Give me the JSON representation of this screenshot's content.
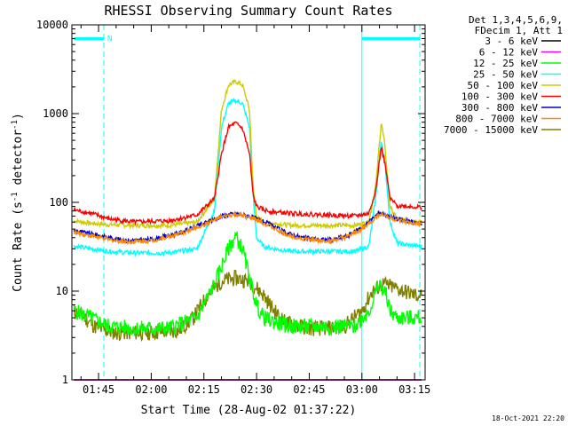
{
  "chart_data": {
    "type": "line",
    "title": "RHESSI Observing Summary Count Rates",
    "xlabel": "Start Time (28-Aug-02 01:37:22)",
    "ylabel_main": "Count Rate (s",
    "ylabel_exp1": "-1",
    "ylabel_mid": " detector",
    "ylabel_exp2": "-1",
    "ylabel_end": ")",
    "x_unit": "minutes after 00:00 UT",
    "xlim": [
      97.4,
      198
    ],
    "ylim": [
      1,
      10000
    ],
    "yscale": "log",
    "xticks": [
      {
        "label": "01:45",
        "value": 105
      },
      {
        "label": "02:00",
        "value": 120
      },
      {
        "label": "02:15",
        "value": 135
      },
      {
        "label": "02:30",
        "value": 150
      },
      {
        "label": "02:45",
        "value": 165
      },
      {
        "label": "03:00",
        "value": 180
      },
      {
        "label": "03:15",
        "value": 195
      }
    ],
    "yticks": [
      {
        "label": "1",
        "value": 1
      },
      {
        "label": "10",
        "value": 10
      },
      {
        "label": "100",
        "value": 100
      },
      {
        "label": "1000",
        "value": 1000
      },
      {
        "label": "10000",
        "value": 10000
      }
    ],
    "legend_header": [
      "Det 1,3,4,5,6,9,",
      "FDecim 1, Att 1"
    ],
    "legend_position": "right",
    "series": [
      {
        "name": "3 - 6 keV",
        "color": "#000000",
        "x": [
          98,
          111,
          127,
          135,
          140,
          150,
          160,
          175,
          180,
          186,
          194,
          197
        ],
        "y": [
          1,
          1,
          1,
          1,
          1,
          1,
          1,
          1,
          1,
          1,
          1,
          1
        ]
      },
      {
        "name": "6 - 12 keV",
        "color": "#ff00ff",
        "x": [
          98,
          111,
          127,
          135,
          140,
          150,
          160,
          175,
          180,
          186,
          194,
          197
        ],
        "y": [
          1,
          1,
          1,
          1,
          1,
          1,
          1,
          1,
          1,
          1,
          1,
          1
        ]
      },
      {
        "name": "12 - 25 keV",
        "color": "#00ff00",
        "x": [
          98,
          103,
          108,
          115,
          125,
          133,
          138,
          142,
          144,
          146,
          148,
          150,
          152,
          155,
          160,
          170,
          178,
          182,
          185,
          187,
          188,
          190,
          193,
          197
        ],
        "y": [
          6,
          5,
          4,
          3.8,
          3.8,
          5,
          12,
          30,
          42,
          30,
          14,
          7,
          5,
          4.5,
          4,
          4,
          4,
          6,
          12,
          9,
          6,
          5,
          5,
          5
        ]
      },
      {
        "name": "25 - 50 keV",
        "color": "#00ffff",
        "x": [
          98,
          103,
          108,
          115,
          125,
          133,
          138,
          140,
          142,
          144,
          146,
          148,
          149,
          150,
          152,
          155,
          160,
          170,
          178,
          182,
          184,
          185.5,
          186.5,
          188,
          190,
          193,
          197
        ],
        "y": [
          32,
          30,
          28,
          27,
          27,
          30,
          80,
          700,
          1300,
          1400,
          1300,
          700,
          120,
          40,
          32,
          30,
          28,
          28,
          28,
          32,
          120,
          500,
          300,
          60,
          35,
          33,
          32
        ]
      },
      {
        "name": "50 - 100 keV",
        "color": "#cccc00",
        "x": [
          98,
          103,
          108,
          115,
          125,
          133,
          138,
          140,
          142,
          144,
          146,
          148,
          149,
          150,
          152,
          155,
          160,
          170,
          178,
          182,
          184,
          185.5,
          186.5,
          188,
          190,
          193,
          197
        ],
        "y": [
          62,
          58,
          56,
          55,
          55,
          60,
          110,
          1100,
          2100,
          2300,
          2100,
          1100,
          150,
          68,
          60,
          58,
          55,
          55,
          55,
          60,
          160,
          800,
          450,
          90,
          65,
          63,
          62
        ]
      },
      {
        "name": "100 - 300 keV",
        "color": "#ff0000",
        "x": [
          98,
          103,
          108,
          115,
          125,
          133,
          138,
          140,
          142,
          144,
          146,
          148,
          149,
          150,
          152,
          155,
          160,
          170,
          178,
          182,
          184,
          185.5,
          186.5,
          188,
          190,
          193,
          197
        ],
        "y": [
          82,
          75,
          65,
          60,
          62,
          72,
          110,
          350,
          700,
          780,
          680,
          350,
          120,
          90,
          82,
          78,
          75,
          72,
          70,
          75,
          140,
          420,
          280,
          110,
          92,
          90,
          88
        ]
      },
      {
        "name": "300 - 800 keV",
        "color": "#0000cc",
        "x": [
          98,
          103,
          108,
          113,
          120,
          128,
          135,
          140,
          144,
          148,
          153,
          158,
          163,
          168,
          172,
          176,
          180,
          183,
          185,
          187,
          190,
          194,
          197
        ],
        "y": [
          48,
          44,
          40,
          37,
          38,
          45,
          58,
          70,
          75,
          70,
          58,
          46,
          40,
          38,
          38,
          42,
          52,
          65,
          78,
          72,
          65,
          60,
          58
        ]
      },
      {
        "name": "800 - 7000 keV",
        "color": "#ff8800",
        "x": [
          98,
          103,
          108,
          113,
          120,
          128,
          135,
          140,
          144,
          148,
          153,
          158,
          163,
          168,
          172,
          176,
          180,
          183,
          185,
          187,
          190,
          194,
          197
        ],
        "y": [
          46,
          42,
          38,
          36,
          37,
          44,
          56,
          68,
          73,
          68,
          56,
          44,
          39,
          37,
          37,
          41,
          50,
          62,
          74,
          70,
          63,
          58,
          56
        ]
      },
      {
        "name": "7000 - 15000 keV",
        "color": "#808000",
        "x": [
          98,
          101,
          104,
          107,
          110,
          120,
          128,
          132,
          136,
          140,
          144,
          148,
          152,
          155,
          158,
          162,
          166,
          170,
          175,
          180,
          183,
          186,
          189,
          192,
          195,
          197
        ],
        "y": [
          6,
          5,
          4,
          3.6,
          3.4,
          3.4,
          3.6,
          5,
          9,
          13,
          14,
          13,
          9,
          6,
          4.5,
          4,
          3.8,
          3.8,
          4,
          6,
          10,
          12,
          11,
          10,
          9,
          9
        ]
      }
    ],
    "annotations": [
      {
        "label": "N",
        "x_start": 98,
        "x_end": 106.5,
        "y": 7000,
        "color": "#00ffff"
      },
      {
        "label": "",
        "x_start": 180,
        "x_end": 196.5,
        "y": 7000,
        "color": "#00ffff"
      }
    ],
    "markers": [
      {
        "x": 106.5,
        "style": "dashed",
        "color": "#00ffff"
      },
      {
        "x": 180,
        "style": "solid",
        "color": "#00ffff"
      },
      {
        "x": 196.5,
        "style": "dashed",
        "color": "#00ffff"
      }
    ],
    "date_stamp": "18-Oct-2021 22:20"
  }
}
